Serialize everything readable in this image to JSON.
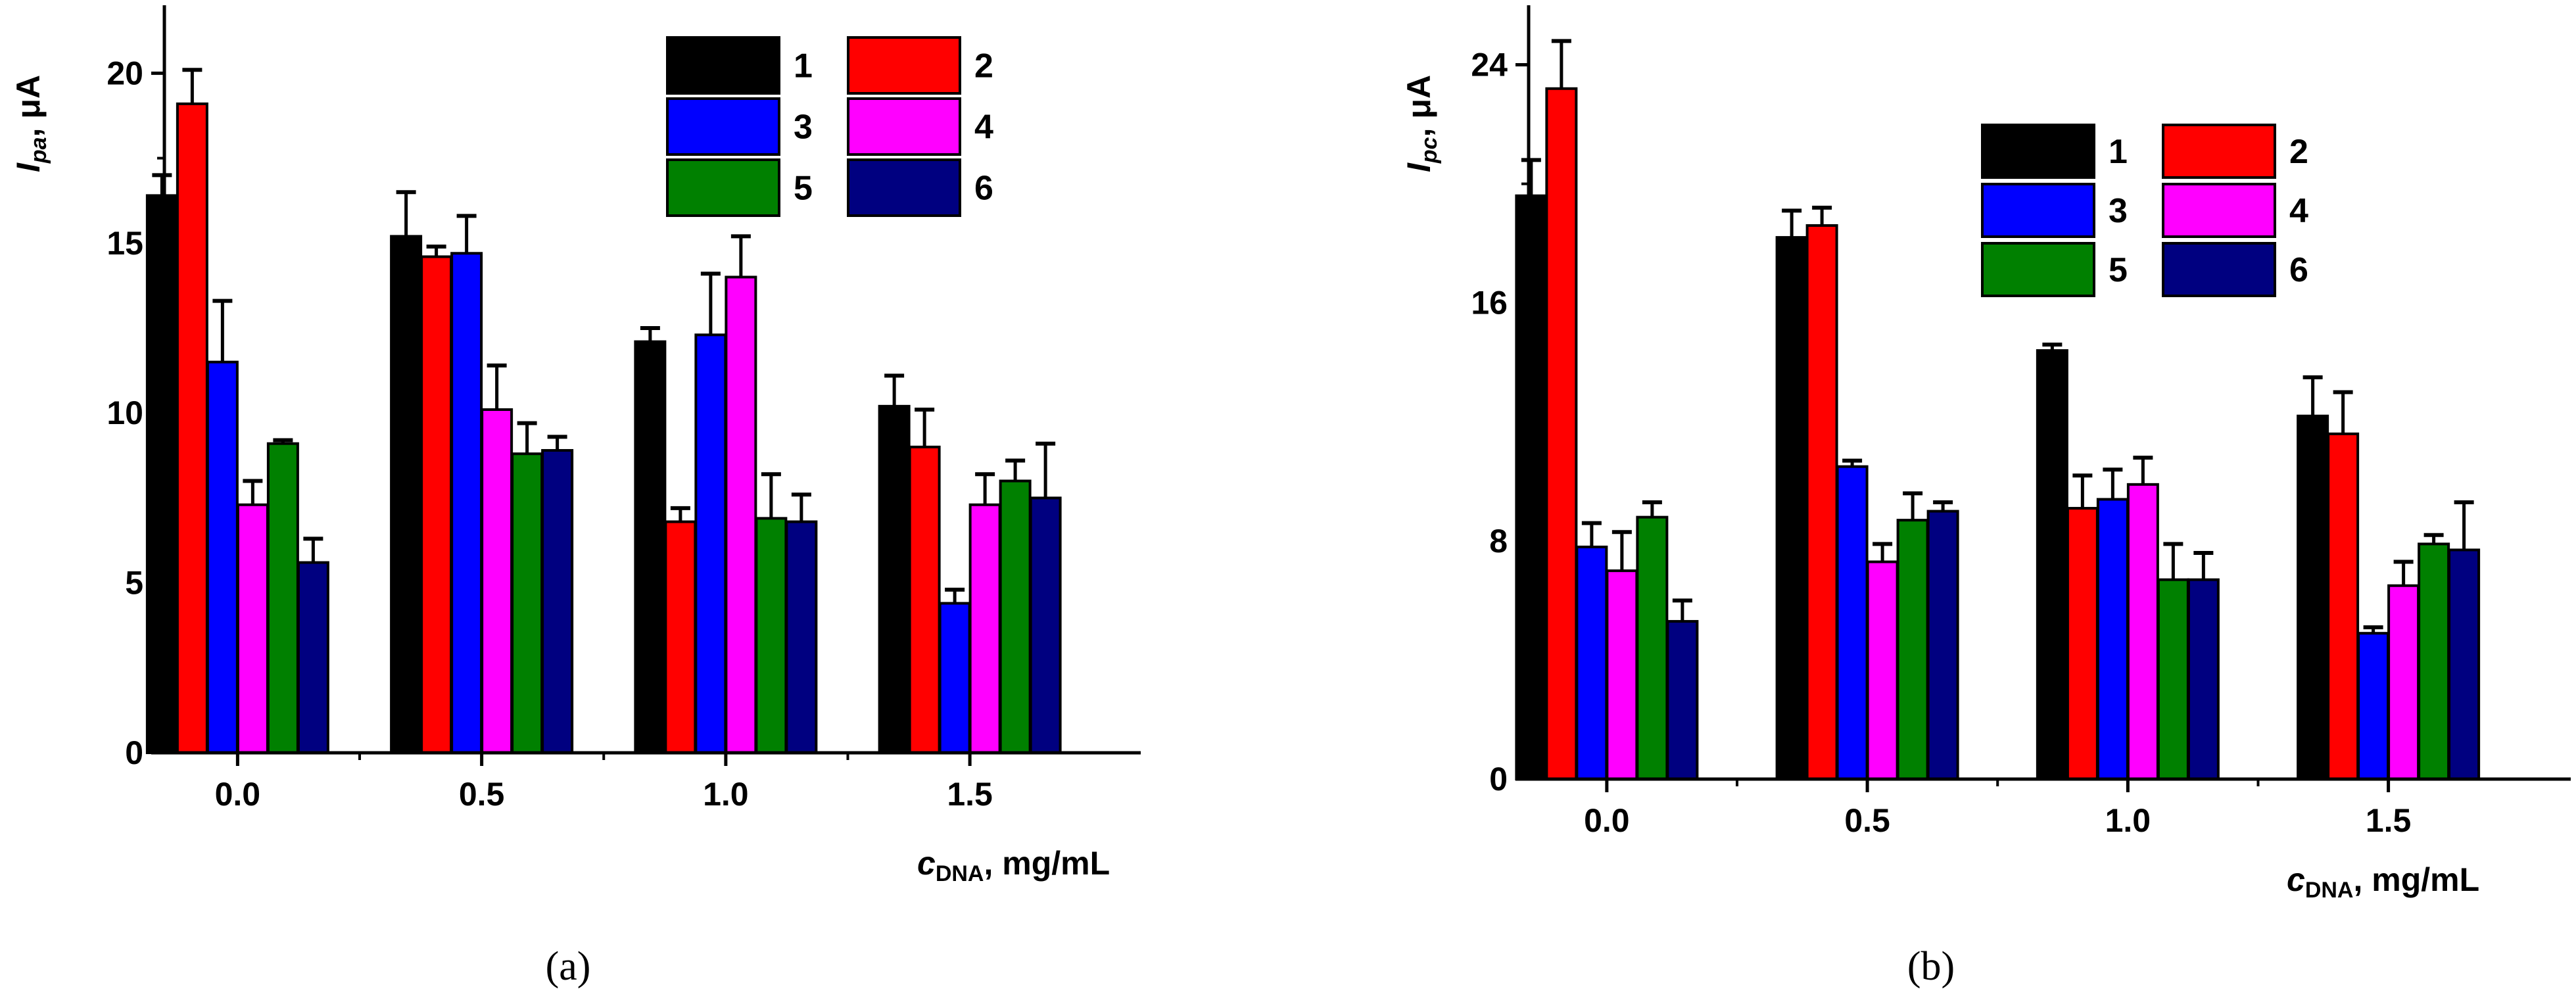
{
  "chart_data": [
    {
      "type": "bar",
      "panel_label": "(a)",
      "ylabel": {
        "symbol": "I",
        "sub": "pa",
        "unit": ", μA"
      },
      "xlabel": {
        "symbol": "c",
        "sub": "DNA",
        "unit": ", mg/mL"
      },
      "ylim": [
        0,
        22
      ],
      "yticks": [
        0,
        5,
        10,
        15,
        20
      ],
      "ytick_labels": [
        "0",
        "5",
        "10",
        "15",
        "20"
      ],
      "xlim": [
        -0.15,
        1.85
      ],
      "xticks": [
        0.0,
        0.5,
        1.0,
        1.5
      ],
      "xtick_labels": [
        "0.0",
        "0.5",
        "1.0",
        "1.5"
      ],
      "legend_position": "top-right",
      "series": [
        {
          "name": "1",
          "color": "#000000",
          "x": [
            0.0,
            0.5,
            1.0,
            1.5
          ],
          "values": [
            16.4,
            15.2,
            12.1,
            10.2
          ],
          "errors": [
            0.6,
            1.3,
            0.4,
            0.9
          ]
        },
        {
          "name": "2",
          "color": "#ff0000",
          "x": [
            0.0,
            0.5,
            1.0,
            1.5
          ],
          "values": [
            19.1,
            14.6,
            6.8,
            9.0
          ],
          "errors": [
            1.0,
            0.3,
            0.4,
            1.1
          ]
        },
        {
          "name": "3",
          "color": "#0000ff",
          "x": [
            0.0,
            0.5,
            1.0,
            1.5
          ],
          "values": [
            11.5,
            14.7,
            12.3,
            4.4
          ],
          "errors": [
            1.8,
            1.1,
            1.8,
            0.4
          ]
        },
        {
          "name": "4",
          "color": "#ff00ff",
          "x": [
            0.0,
            0.5,
            1.0,
            1.5
          ],
          "values": [
            7.3,
            10.1,
            14.0,
            7.3
          ],
          "errors": [
            0.7,
            1.3,
            1.2,
            0.9
          ]
        },
        {
          "name": "5",
          "color": "#008000",
          "x": [
            0.0,
            0.5,
            1.0,
            1.5
          ],
          "values": [
            9.1,
            8.8,
            6.9,
            8.0
          ],
          "errors": [
            0.1,
            0.9,
            1.3,
            0.6
          ]
        },
        {
          "name": "6",
          "color": "#000080",
          "x": [
            0.0,
            0.5,
            1.0,
            1.5
          ],
          "values": [
            5.6,
            8.9,
            6.8,
            7.5
          ],
          "errors": [
            0.7,
            0.4,
            0.8,
            1.6
          ]
        }
      ]
    },
    {
      "type": "bar",
      "panel_label": "(b)",
      "ylabel": {
        "symbol": "I",
        "sub": "pc",
        "unit": ", μA"
      },
      "xlabel": {
        "symbol": "c",
        "sub": "DNA",
        "unit": ", mg/mL"
      },
      "ylim": [
        0,
        26
      ],
      "yticks": [
        0,
        8,
        16,
        24
      ],
      "ytick_labels": [
        "0",
        "8",
        "16",
        "24"
      ],
      "xlim": [
        -0.15,
        1.85
      ],
      "xticks": [
        0.0,
        0.5,
        1.0,
        1.5
      ],
      "xtick_labels": [
        "0.0",
        "0.5",
        "1.0",
        "1.5"
      ],
      "legend_position": "top-right",
      "series": [
        {
          "name": "1",
          "color": "#000000",
          "x": [
            0.0,
            0.5,
            1.0,
            1.5
          ],
          "values": [
            19.6,
            18.2,
            14.4,
            12.2
          ],
          "errors": [
            1.2,
            0.9,
            0.2,
            1.3
          ]
        },
        {
          "name": "2",
          "color": "#ff0000",
          "x": [
            0.0,
            0.5,
            1.0,
            1.5
          ],
          "values": [
            23.2,
            18.6,
            9.1,
            11.6
          ],
          "errors": [
            1.6,
            0.6,
            1.1,
            1.4
          ]
        },
        {
          "name": "3",
          "color": "#0000ff",
          "x": [
            0.0,
            0.5,
            1.0,
            1.5
          ],
          "values": [
            7.8,
            10.5,
            9.4,
            4.9
          ],
          "errors": [
            0.8,
            0.2,
            1.0,
            0.2
          ]
        },
        {
          "name": "4",
          "color": "#ff00ff",
          "x": [
            0.0,
            0.5,
            1.0,
            1.5
          ],
          "values": [
            7.0,
            7.3,
            9.9,
            6.5
          ],
          "errors": [
            1.3,
            0.6,
            0.9,
            0.8
          ]
        },
        {
          "name": "5",
          "color": "#008000",
          "x": [
            0.0,
            0.5,
            1.0,
            1.5
          ],
          "values": [
            8.8,
            8.7,
            6.7,
            7.9
          ],
          "errors": [
            0.5,
            0.9,
            1.2,
            0.3
          ]
        },
        {
          "name": "6",
          "color": "#000080",
          "x": [
            0.0,
            0.5,
            1.0,
            1.5
          ],
          "values": [
            5.3,
            9.0,
            6.7,
            7.7
          ],
          "errors": [
            0.7,
            0.3,
            0.9,
            1.6
          ]
        }
      ]
    }
  ]
}
